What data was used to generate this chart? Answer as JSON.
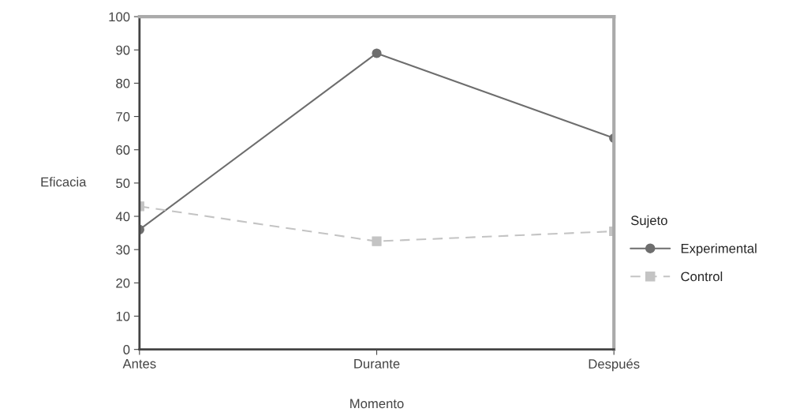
{
  "chart_data": {
    "type": "line",
    "xlabel": "Momento",
    "ylabel": "Eficacia",
    "legend_title": "Sujeto",
    "categories": [
      "Antes",
      "Durante",
      "Después"
    ],
    "series": [
      {
        "name": "Experimental",
        "color": "#6e6e6e",
        "values": [
          36,
          89,
          63.5
        ],
        "marker": "circle",
        "line_style": "solid"
      },
      {
        "name": "Control",
        "color": "#c4c4c4",
        "values": [
          43,
          32.5,
          35.5
        ],
        "marker": "square",
        "line_style": "dashed"
      }
    ],
    "ylim": [
      0,
      100
    ],
    "yticks": [
      0,
      10,
      20,
      30,
      40,
      50,
      60,
      70,
      80,
      90,
      100
    ],
    "grid": false,
    "legend": "right"
  }
}
